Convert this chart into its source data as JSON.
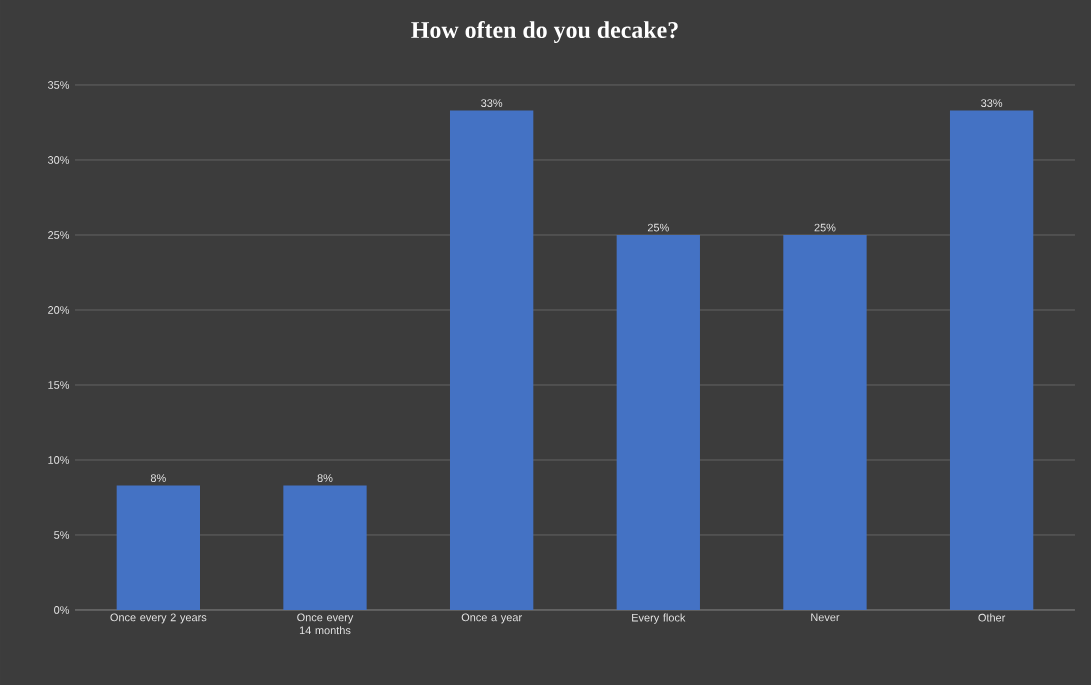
{
  "chart_data": {
    "type": "bar",
    "title": "How often do you decake?",
    "categories": [
      "Once every 2 years",
      "Once every 14 months",
      "Once a year",
      "Every flock",
      "Never",
      "Other"
    ],
    "values": [
      8.3,
      8.3,
      33.3,
      25,
      25,
      33.3
    ],
    "value_labels": [
      "8%",
      "8%",
      "33%",
      "25%",
      "25%",
      "33%"
    ],
    "color": "#4472c4",
    "ylim": [
      0,
      35
    ],
    "yticks": [
      {
        "value": 0,
        "label": "0%"
      },
      {
        "value": 5,
        "label": "5%"
      },
      {
        "value": 10,
        "label": "10%"
      },
      {
        "value": 15,
        "label": "15%"
      },
      {
        "value": 20,
        "label": "20%"
      },
      {
        "value": 25,
        "label": "25%"
      },
      {
        "value": 30,
        "label": "30%"
      },
      {
        "value": 35,
        "label": "35%"
      }
    ],
    "grid": "y"
  }
}
